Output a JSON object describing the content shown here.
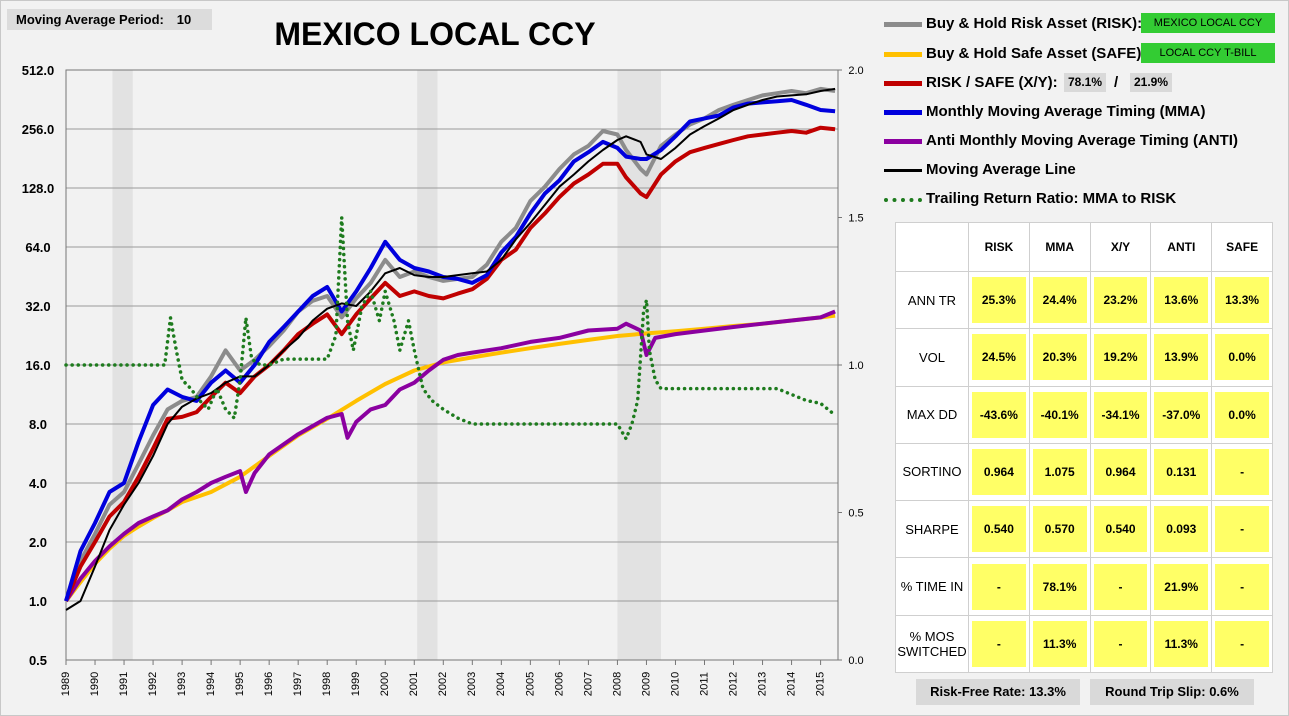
{
  "header": {
    "param_label": "Moving Average Period:",
    "param_value": "10",
    "title": "MEXICO LOCAL CCY"
  },
  "legend": {
    "risk_label": "Buy & Hold Risk Asset (RISK):",
    "risk_tag": "MEXICO LOCAL CCY",
    "safe_label": "Buy & Hold Safe Asset (SAFE):",
    "safe_tag": "LOCAL CCY T-BILL",
    "xy_label": "RISK / SAFE (X/Y):",
    "xy_risk": "78.1%",
    "xy_sep": "/",
    "xy_safe": "21.9%",
    "mma_label": "Monthly Moving Average Timing (MMA)",
    "anti_label": "Anti Monthly Moving Average Timing (ANTI)",
    "ma_label": "Moving Average Line",
    "trr_label": "Trailing Return Ratio: MMA to RISK"
  },
  "colors": {
    "risk": "#8c8c8c",
    "safe": "#ffc000",
    "xy": "#c00000",
    "mma": "#0000dd",
    "anti": "#8b00a0",
    "ma": "#000000",
    "trr": "#1e7b1e",
    "recession": "#e2e2e2",
    "grid": "#9a9a9a",
    "tag": "#33cc33",
    "cell": "#ffff66"
  },
  "stats": {
    "columns": [
      "RISK",
      "MMA",
      "X/Y",
      "ANTI",
      "SAFE"
    ],
    "rows": [
      {
        "label": "ANN TR",
        "values": [
          "25.3%",
          "24.4%",
          "23.2%",
          "13.6%",
          "13.3%"
        ]
      },
      {
        "label": "VOL",
        "values": [
          "24.5%",
          "20.3%",
          "19.2%",
          "13.9%",
          "0.0%"
        ]
      },
      {
        "label": "MAX DD",
        "values": [
          "-43.6%",
          "-40.1%",
          "-34.1%",
          "-37.0%",
          "0.0%"
        ]
      },
      {
        "label": "SORTINO",
        "values": [
          "0.964",
          "1.075",
          "0.964",
          "0.131",
          "-"
        ]
      },
      {
        "label": "SHARPE",
        "values": [
          "0.540",
          "0.570",
          "0.540",
          "0.093",
          "-"
        ]
      },
      {
        "label": "% TIME IN",
        "values": [
          "-",
          "78.1%",
          "-",
          "21.9%",
          "-"
        ]
      },
      {
        "label": "% MOS SWITCHED",
        "values": [
          "-",
          "11.3%",
          "-",
          "11.3%",
          "-"
        ]
      }
    ]
  },
  "footer": {
    "rf_label": "Risk-Free Rate:",
    "rf_value": "13.3%",
    "slip_label": "Round Trip Slip:",
    "slip_value": "0.6%"
  },
  "chart_data": {
    "type": "line",
    "x_ticks": [
      "1989",
      "1990",
      "1991",
      "1992",
      "1993",
      "1994",
      "1995",
      "1996",
      "1997",
      "1998",
      "1999",
      "2000",
      "2001",
      "2002",
      "2003",
      "2004",
      "2005",
      "2006",
      "2007",
      "2008",
      "2009",
      "2010",
      "2011",
      "2012",
      "2013",
      "2014",
      "2015"
    ],
    "y_left": {
      "scale": "log2",
      "ticks": [
        "512.0",
        "256.0",
        "128.0",
        "64.0",
        "32.0",
        "16.0",
        "8.0",
        "4.0",
        "2.0",
        "1.0",
        "0.5"
      ],
      "range": [
        0.5,
        512
      ]
    },
    "y_right": {
      "ticks": [
        "2.0",
        "1.5",
        "1.0",
        "0.5",
        "0.0"
      ],
      "range": [
        0,
        2
      ]
    },
    "recessions": [
      [
        1990.6,
        1991.3
      ],
      [
        2001.1,
        2001.8
      ],
      [
        2008.0,
        2009.5
      ]
    ],
    "series": [
      {
        "key": "risk",
        "axis": "left",
        "x": [
          1989,
          1989.5,
          1990,
          1990.5,
          1991,
          1991.5,
          1992,
          1992.5,
          1993,
          1993.5,
          1994,
          1994.5,
          1995,
          1995.5,
          1996,
          1996.5,
          1997,
          1997.5,
          1998,
          1998.5,
          1999,
          1999.5,
          2000,
          2000.5,
          2001,
          2001.5,
          2002,
          2002.5,
          2003,
          2003.5,
          2004,
          2004.5,
          2005,
          2005.5,
          2006,
          2006.5,
          2007,
          2007.5,
          2008,
          2008.3,
          2008.8,
          2009,
          2009.5,
          2010,
          2010.5,
          2011,
          2011.5,
          2012,
          2012.5,
          2013,
          2013.5,
          2014,
          2014.5,
          2015,
          2015.5
        ],
        "y": [
          1,
          1.6,
          2.2,
          3.1,
          3.6,
          5,
          7,
          9.5,
          10.5,
          11,
          14,
          19,
          15,
          17,
          20,
          24,
          30,
          34,
          36,
          28,
          35,
          42,
          55,
          45,
          48,
          45,
          43,
          44,
          45,
          52,
          68,
          80,
          110,
          130,
          160,
          190,
          210,
          250,
          240,
          200,
          160,
          150,
          210,
          240,
          270,
          290,
          320,
          340,
          360,
          380,
          390,
          400,
          390,
          410,
          400
        ]
      },
      {
        "key": "safe",
        "axis": "left",
        "x": [
          1989,
          1989.5,
          1990,
          1990.5,
          1991,
          1991.5,
          1992,
          1992.5,
          1993,
          1994,
          1995,
          1996,
          1997,
          1998,
          1999,
          2000,
          2001,
          2002,
          2003,
          2004,
          2005,
          2006,
          2007,
          2008,
          2009,
          2010,
          2011,
          2012,
          2013,
          2014,
          2015,
          2015.5
        ],
        "y": [
          1,
          1.25,
          1.55,
          1.85,
          2.15,
          2.4,
          2.65,
          2.9,
          3.2,
          3.6,
          4.3,
          5.5,
          7,
          8.5,
          10.5,
          12.8,
          15,
          16.5,
          17.5,
          18.5,
          19.5,
          20.5,
          21.5,
          22.5,
          23.2,
          23.8,
          24.5,
          25.3,
          26,
          27,
          28,
          28.6
        ]
      },
      {
        "key": "xy",
        "axis": "left",
        "x": [
          1989,
          1989.5,
          1990,
          1990.5,
          1991,
          1991.5,
          1992,
          1992.5,
          1993,
          1993.5,
          1994,
          1994.5,
          1995,
          1995.5,
          1996,
          1996.5,
          1997,
          1997.5,
          1998,
          1998.5,
          1999,
          1999.5,
          2000,
          2000.5,
          2001,
          2001.5,
          2002,
          2002.5,
          2003,
          2003.5,
          2004,
          2004.5,
          2005,
          2005.5,
          2006,
          2006.5,
          2007,
          2007.5,
          2008,
          2008.3,
          2008.8,
          2009,
          2009.5,
          2010,
          2010.5,
          2011,
          2011.5,
          2012,
          2012.5,
          2013,
          2013.5,
          2014,
          2014.5,
          2015,
          2015.5
        ],
        "y": [
          1,
          1.5,
          2,
          2.7,
          3.2,
          4.3,
          6,
          8.5,
          8.7,
          9.2,
          11,
          13,
          11.5,
          14,
          16,
          19,
          23,
          26,
          29,
          23,
          29,
          35,
          42,
          36,
          38,
          36,
          35,
          37,
          39,
          44,
          55,
          62,
          80,
          95,
          115,
          135,
          150,
          170,
          170,
          145,
          120,
          115,
          150,
          175,
          195,
          205,
          215,
          225,
          235,
          240,
          245,
          250,
          245,
          260,
          255
        ]
      },
      {
        "key": "mma",
        "axis": "left",
        "x": [
          1989,
          1989.5,
          1990,
          1990.5,
          1991,
          1991.5,
          1992,
          1992.5,
          1993,
          1993.5,
          1994,
          1994.5,
          1995,
          1995.5,
          1996,
          1996.5,
          1997,
          1997.5,
          1998,
          1998.5,
          1999,
          1999.5,
          2000,
          2000.5,
          2001,
          2001.5,
          2002,
          2002.5,
          2003,
          2003.5,
          2004,
          2004.5,
          2005,
          2005.5,
          2006,
          2006.5,
          2007,
          2007.5,
          2008,
          2008.3,
          2008.8,
          2009,
          2009.5,
          2010,
          2010.5,
          2011,
          2011.5,
          2012,
          2012.5,
          2013,
          2013.5,
          2014,
          2014.5,
          2015,
          2015.5
        ],
        "y": [
          1,
          1.8,
          2.5,
          3.6,
          4,
          6.5,
          10,
          12,
          11,
          10.5,
          13,
          15,
          13,
          16,
          21,
          25,
          30,
          36,
          40,
          30,
          38,
          50,
          68,
          55,
          50,
          48,
          45,
          44,
          42,
          46,
          60,
          72,
          95,
          120,
          140,
          175,
          195,
          220,
          205,
          185,
          180,
          180,
          200,
          235,
          280,
          290,
          300,
          330,
          345,
          350,
          355,
          360,
          340,
          320,
          315
        ]
      },
      {
        "key": "anti",
        "axis": "left",
        "x": [
          1989,
          1989.5,
          1990,
          1990.5,
          1991,
          1991.5,
          1992,
          1992.5,
          1993,
          1993.5,
          1994,
          1994.5,
          1995,
          1995.2,
          1995.5,
          1996,
          1997,
          1998,
          1998.5,
          1998.7,
          1999,
          1999.5,
          2000,
          2000.5,
          2001,
          2001.5,
          2002,
          2002.5,
          2003,
          2004,
          2005,
          2006,
          2007,
          2008,
          2008.3,
          2008.8,
          2009,
          2009.3,
          2010,
          2011,
          2012,
          2013,
          2014,
          2015,
          2015.5
        ],
        "y": [
          1,
          1.3,
          1.6,
          1.9,
          2.2,
          2.5,
          2.7,
          2.9,
          3.3,
          3.6,
          4,
          4.3,
          4.6,
          3.6,
          4.5,
          5.6,
          7.1,
          8.6,
          9,
          6.8,
          8.2,
          9.5,
          10,
          12,
          13,
          15,
          17,
          18,
          18.5,
          19.5,
          21,
          22,
          24,
          24.5,
          26,
          24,
          18,
          22,
          23,
          24,
          25,
          26,
          27,
          28,
          30
        ]
      },
      {
        "key": "ma",
        "axis": "left",
        "x": [
          1989,
          1989.5,
          1990,
          1990.5,
          1991,
          1991.5,
          1992,
          1992.5,
          1993,
          1993.5,
          1994,
          1994.5,
          1995,
          1995.5,
          1996,
          1996.5,
          1997,
          1997.5,
          1998,
          1998.5,
          1999,
          1999.5,
          2000,
          2000.5,
          2001,
          2001.5,
          2002,
          2002.5,
          2003,
          2003.5,
          2004,
          2004.5,
          2005,
          2005.5,
          2006,
          2006.5,
          2007,
          2007.5,
          2008,
          2008.3,
          2008.8,
          2009,
          2009.5,
          2010,
          2010.5,
          2011,
          2011.5,
          2012,
          2012.5,
          2013,
          2013.5,
          2014,
          2014.5,
          2015,
          2015.5
        ],
        "y": [
          0.9,
          1,
          1.5,
          2.3,
          3.1,
          4,
          5.5,
          8,
          9.8,
          10.8,
          11.5,
          13,
          14,
          14,
          16,
          19,
          22,
          27,
          31,
          33,
          32,
          38,
          47,
          50,
          46,
          45,
          45,
          46,
          47,
          48,
          55,
          70,
          85,
          105,
          130,
          150,
          175,
          200,
          225,
          235,
          220,
          190,
          180,
          205,
          240,
          265,
          290,
          320,
          340,
          360,
          375,
          380,
          385,
          400,
          410
        ]
      },
      {
        "key": "trr",
        "axis": "right",
        "x": [
          1989,
          1989.5,
          1990,
          1990.5,
          1991,
          1991.5,
          1992,
          1992.4,
          1992.6,
          1992.8,
          1993,
          1993.3,
          1993.6,
          1993.9,
          1994.2,
          1994.5,
          1994.8,
          1995,
          1995.2,
          1995.4,
          1995.7,
          1996,
          1996.5,
          1997,
          1997.5,
          1998,
          1998.3,
          1998.5,
          1998.7,
          1998.9,
          1999.2,
          1999.5,
          1999.8,
          2000,
          2000.3,
          2000.5,
          2000.8,
          2001,
          2001.3,
          2001.6,
          2002,
          2002.5,
          2003,
          2003.5,
          2004,
          2004.5,
          2005,
          2005.5,
          2006,
          2006.5,
          2007,
          2007.5,
          2008,
          2008.3,
          2008.5,
          2008.7,
          2008.9,
          2009,
          2009.1,
          2009.3,
          2009.5,
          2010,
          2010.5,
          2011,
          2011.5,
          2012,
          2012.5,
          2013,
          2013.5,
          2014,
          2014.5,
          2015,
          2015.5
        ],
        "y": [
          1,
          1,
          1,
          1,
          1,
          1,
          1,
          1.0,
          1.16,
          1.05,
          0.95,
          0.92,
          0.88,
          0.85,
          0.92,
          0.85,
          0.82,
          0.95,
          1.16,
          1.02,
          1.0,
          1.0,
          1.02,
          1.02,
          1.02,
          1.02,
          1.1,
          1.5,
          1.15,
          1.05,
          1.2,
          1.25,
          1.15,
          1.25,
          1.15,
          1.05,
          1.15,
          1.05,
          0.92,
          0.88,
          0.85,
          0.82,
          0.8,
          0.8,
          0.8,
          0.8,
          0.8,
          0.8,
          0.8,
          0.8,
          0.8,
          0.8,
          0.8,
          0.75,
          0.8,
          0.88,
          1.18,
          1.22,
          1.05,
          0.95,
          0.92,
          0.92,
          0.92,
          0.92,
          0.92,
          0.92,
          0.92,
          0.92,
          0.92,
          0.9,
          0.88,
          0.87,
          0.83
        ]
      }
    ]
  }
}
